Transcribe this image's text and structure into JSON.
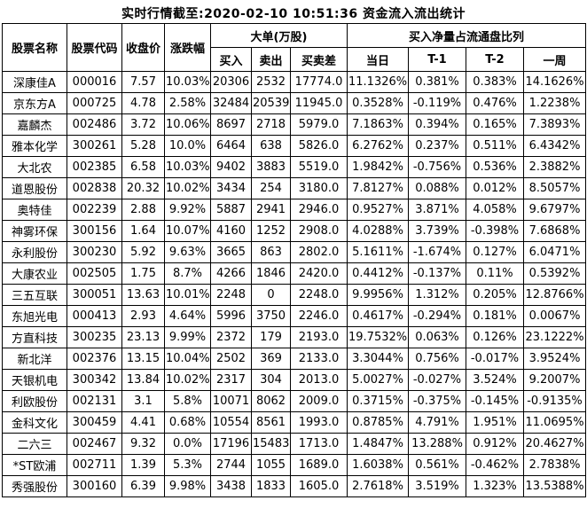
{
  "title": "实时行情截至:2020-02-10 10:51:36 资金流入流出统计",
  "colors": {
    "link_blue": "#1a5da9",
    "border": "#000000",
    "text": "#000000",
    "background": "#ffffff"
  },
  "table": {
    "headers": {
      "name": "股票名称",
      "code": "股票代码",
      "close": "收盘价",
      "change": "涨跌幅",
      "big_order_group": "大单(万股)",
      "buy": "买入",
      "sell": "卖出",
      "diff": "买卖差",
      "ratio_group": "买入净量占流通盘比列",
      "day": "当日",
      "t1": "T-1",
      "t2": "T-2",
      "week": "一周"
    },
    "rows": [
      [
        "深康佳A",
        "000016",
        "7.57",
        "10.03%",
        "20306",
        "2532",
        "17774.0",
        "11.1326%",
        "0.381%",
        "0.383%",
        "14.1626%"
      ],
      [
        "京东方A",
        "000725",
        "4.78",
        "2.58%",
        "32484",
        "20539",
        "11945.0",
        "0.3528%",
        "-0.119%",
        "0.476%",
        "1.2238%"
      ],
      [
        "嘉麟杰",
        "002486",
        "3.72",
        "10.06%",
        "8697",
        "2718",
        "5979.0",
        "7.1863%",
        "0.394%",
        "0.165%",
        "7.3893%"
      ],
      [
        "雅本化学",
        "300261",
        "5.28",
        "10.0%",
        "6464",
        "638",
        "5826.0",
        "6.2762%",
        "0.237%",
        "0.511%",
        "6.4342%"
      ],
      [
        "大北农",
        "002385",
        "6.58",
        "10.03%",
        "9402",
        "3883",
        "5519.0",
        "1.9842%",
        "-0.756%",
        "0.536%",
        "2.3882%"
      ],
      [
        "道恩股份",
        "002838",
        "20.32",
        "10.02%",
        "3434",
        "254",
        "3180.0",
        "7.8127%",
        "0.088%",
        "0.012%",
        "8.5057%"
      ],
      [
        "奥特佳",
        "002239",
        "2.88",
        "9.92%",
        "5887",
        "2941",
        "2946.0",
        "0.9527%",
        "3.871%",
        "4.058%",
        "9.6797%"
      ],
      [
        "神雾环保",
        "300156",
        "1.64",
        "10.07%",
        "4160",
        "1252",
        "2908.0",
        "4.0288%",
        "3.739%",
        "-0.398%",
        "7.6868%"
      ],
      [
        "永利股份",
        "300230",
        "5.92",
        "9.63%",
        "3665",
        "863",
        "2802.0",
        "5.1611%",
        "-1.674%",
        "0.127%",
        "6.0471%"
      ],
      [
        "大康农业",
        "002505",
        "1.75",
        "8.7%",
        "4266",
        "1846",
        "2420.0",
        "0.4412%",
        "-0.137%",
        "0.11%",
        "0.5392%"
      ],
      [
        "三五互联",
        "300051",
        "13.63",
        "10.01%",
        "2248",
        "0",
        "2248.0",
        "9.9956%",
        "1.312%",
        "0.205%",
        "12.8766%"
      ],
      [
        "东旭光电",
        "000413",
        "2.93",
        "4.64%",
        "5996",
        "3750",
        "2246.0",
        "0.4617%",
        "-0.294%",
        "0.181%",
        "0.0067%"
      ],
      [
        "方直科技",
        "300235",
        "23.13",
        "9.99%",
        "2372",
        "179",
        "2193.0",
        "19.7532%",
        "0.063%",
        "0.126%",
        "23.1222%"
      ],
      [
        "新北洋",
        "002376",
        "13.15",
        "10.04%",
        "2502",
        "369",
        "2133.0",
        "3.3044%",
        "0.756%",
        "-0.017%",
        "3.9524%"
      ],
      [
        "天银机电",
        "300342",
        "13.84",
        "10.02%",
        "2317",
        "304",
        "2013.0",
        "5.0027%",
        "-0.027%",
        "3.524%",
        "9.2007%"
      ],
      [
        "利欧股份",
        "002131",
        "3.1",
        "5.8%",
        "10071",
        "8062",
        "2009.0",
        "0.3715%",
        "-0.375%",
        "-0.145%",
        "-0.9135%"
      ],
      [
        "金科文化",
        "300459",
        "4.41",
        "0.68%",
        "10554",
        "8561",
        "1993.0",
        "0.8785%",
        "4.791%",
        "1.951%",
        "11.0695%"
      ],
      [
        "二六三",
        "002467",
        "9.32",
        "0.0%",
        "17196",
        "15483",
        "1713.0",
        "1.4847%",
        "13.288%",
        "0.912%",
        "20.4627%"
      ],
      [
        "*ST欧浦",
        "002711",
        "1.39",
        "5.3%",
        "2744",
        "1055",
        "1689.0",
        "1.6038%",
        "0.561%",
        "-0.462%",
        "2.7838%"
      ],
      [
        "秀强股份",
        "300160",
        "6.39",
        "9.98%",
        "3438",
        "1833",
        "1605.0",
        "2.7618%",
        "3.519%",
        "1.323%",
        "13.5388%"
      ]
    ]
  }
}
